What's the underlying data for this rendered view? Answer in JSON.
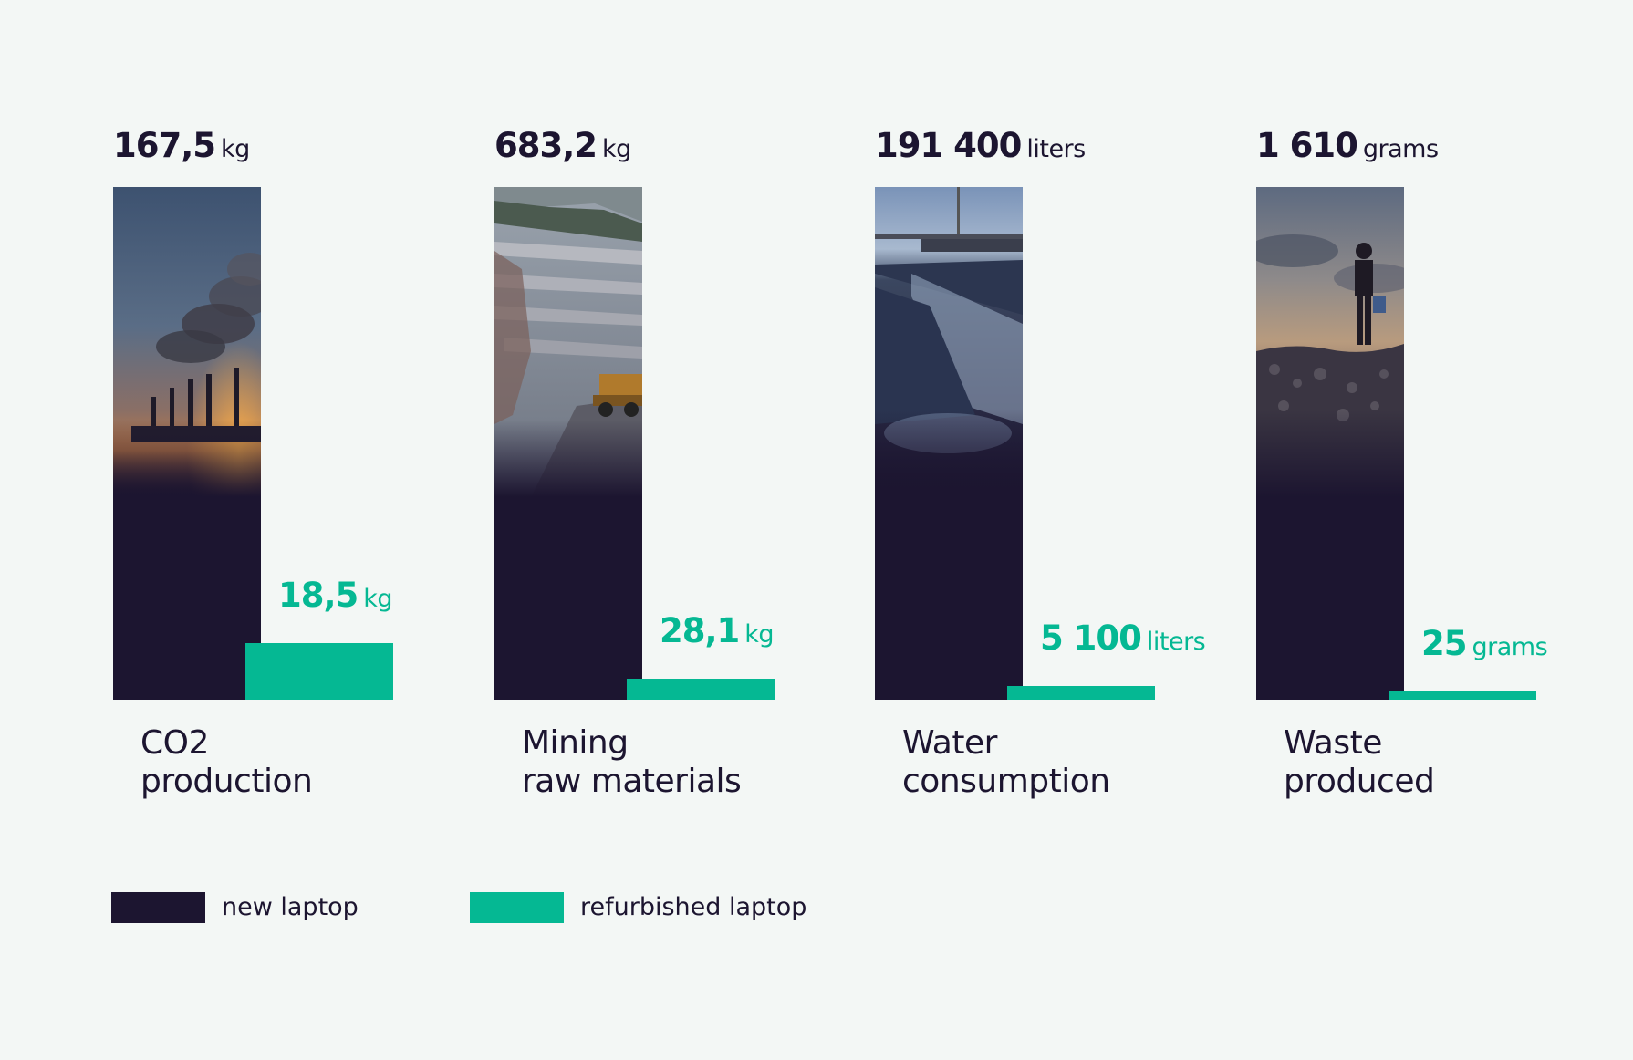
{
  "colors": {
    "background": "#f3f7f5",
    "new": "#1c1530",
    "refurbished": "#05b893"
  },
  "chart_data": {
    "type": "bar",
    "legend": {
      "placement": "bottom-left",
      "items": [
        "new laptop",
        "refurbished laptop"
      ]
    },
    "series": [
      {
        "name": "new laptop",
        "color": "#1c1530"
      },
      {
        "name": "refurbished laptop",
        "color": "#05b893"
      }
    ],
    "groups": [
      {
        "label_line1": "CO2",
        "label_line2": "production",
        "new_value": 167.5,
        "new_text": "167,5",
        "new_unit": "kg",
        "refurbished_value": 18.5,
        "refurbished_text": "18,5",
        "refurbished_unit": "kg",
        "photo": "factory-smokestacks-photo"
      },
      {
        "label_line1": "Mining",
        "label_line2": "raw materials",
        "new_value": 683.2,
        "new_text": "683,2",
        "new_unit": "kg",
        "refurbished_value": 28.1,
        "refurbished_text": "28,1",
        "refurbished_unit": "kg",
        "photo": "quarry-mining-truck-photo"
      },
      {
        "label_line1": "Water",
        "label_line2": "consumption",
        "new_value": 191400,
        "new_text": "191 400",
        "new_unit": "liters",
        "refurbished_value": 5100,
        "refurbished_text": "5 100",
        "refurbished_unit": "liters",
        "photo": "water-treatment-weir-photo"
      },
      {
        "label_line1": "Waste",
        "label_line2": "produced",
        "new_value": 1610,
        "new_text": "1 610",
        "new_unit": "grams",
        "refurbished_value": 25,
        "refurbished_text": "25",
        "refurbished_unit": "grams",
        "photo": "person-on-waste-pile-photo"
      }
    ]
  }
}
